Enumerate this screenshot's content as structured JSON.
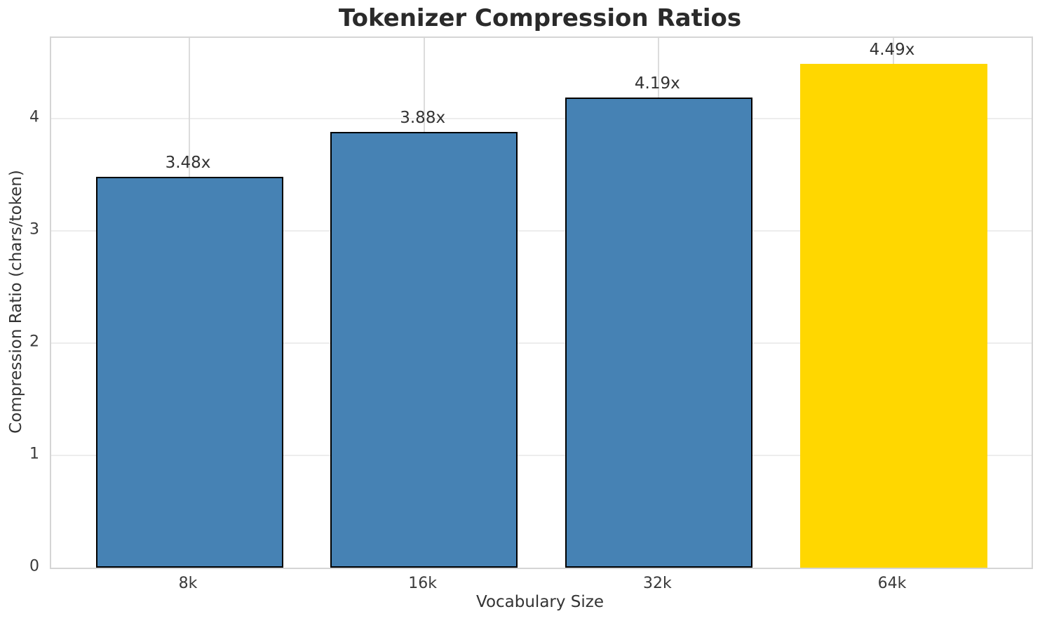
{
  "chart_data": {
    "type": "bar",
    "title": "Tokenizer Compression Ratios",
    "xlabel": "Vocabulary Size",
    "ylabel": "Compression Ratio (chars/token)",
    "categories": [
      "8k",
      "16k",
      "32k",
      "64k"
    ],
    "values": [
      3.48,
      3.88,
      4.19,
      4.49
    ],
    "bar_labels": [
      "3.48x",
      "3.88x",
      "4.19x",
      "4.49x"
    ],
    "yticks": [
      0,
      1,
      2,
      3,
      4
    ],
    "ylim": [
      0,
      4.72
    ],
    "grid": true,
    "legend": "none",
    "bar_colors": [
      "#4682B4",
      "#4682B4",
      "#4682B4",
      "#FFD700"
    ],
    "bar_edge_widths": [
      2,
      2,
      2,
      0
    ],
    "colors": {
      "bar_default": "#4682B4",
      "bar_highlight": "#FFD700",
      "bar_edge": "#000000",
      "grid_horizontal": "#ededed",
      "grid_vertical": "#dcdcdc",
      "spine": "#d5d5d5",
      "title_text": "#2a2a2a",
      "tick_text": "#3a3a3a",
      "background": "#ffffff"
    }
  }
}
